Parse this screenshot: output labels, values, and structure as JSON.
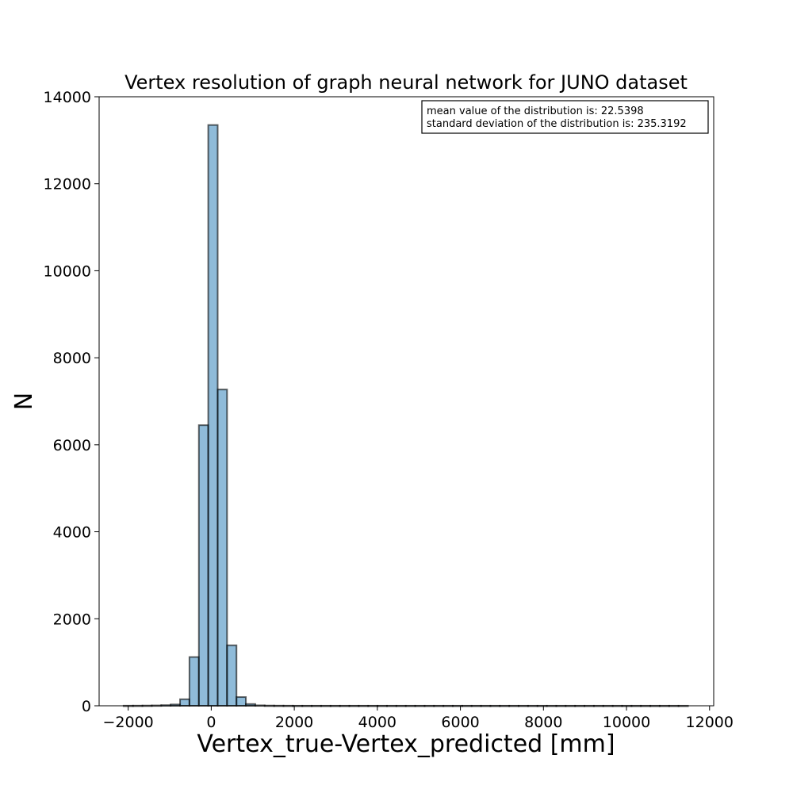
{
  "chart_data": {
    "type": "bar",
    "title": "Vertex resolution of graph neural network for JUNO dataset",
    "xlabel": "Vertex_true-Vertex_predicted [mm]",
    "ylabel": "N",
    "xlim": [
      -2700,
      12100
    ],
    "ylim": [
      0,
      14000
    ],
    "xticks": [
      -2000,
      0,
      2000,
      4000,
      6000,
      8000,
      10000,
      12000
    ],
    "yticks": [
      0,
      2000,
      4000,
      6000,
      8000,
      10000,
      12000,
      14000
    ],
    "xtick_labels": [
      "−2000",
      "0",
      "2000",
      "4000",
      "6000",
      "8000",
      "10000",
      "12000"
    ],
    "ytick_labels": [
      "0",
      "2000",
      "4000",
      "6000",
      "8000",
      "10000",
      "12000",
      "14000"
    ],
    "bin_edges": [
      -2110,
      -1884,
      -1657,
      -1431,
      -1204,
      -978,
      -751,
      -525,
      -298,
      -72,
      155,
      381,
      608,
      834,
      1061,
      1287,
      1514,
      1740,
      1967,
      2193,
      2420,
      2646,
      2873,
      3099,
      3326,
      3552,
      3779,
      4005,
      4232,
      4458,
      4685,
      4911,
      5138,
      5364,
      5591,
      5817,
      6044,
      6270,
      6497,
      6723,
      6950,
      7176,
      7403,
      7629,
      7856,
      8082,
      8309,
      8535,
      8762,
      8988,
      9215,
      9441,
      9668,
      9894,
      10121,
      10347,
      10574,
      10800,
      11027,
      11253,
      11480
    ],
    "values": [
      2,
      3,
      5,
      8,
      15,
      30,
      150,
      1120,
      6450,
      13350,
      7270,
      1390,
      200,
      40,
      10,
      5,
      3,
      2,
      1,
      1,
      1,
      1,
      1,
      1,
      1,
      1,
      1,
      1,
      1,
      1,
      1,
      1,
      1,
      1,
      1,
      1,
      1,
      1,
      1,
      1,
      1,
      1,
      1,
      1,
      1,
      1,
      1,
      1,
      1,
      1,
      1,
      1,
      1,
      1,
      1,
      1,
      1,
      1,
      1,
      1
    ],
    "bar_color": "#1f77b4",
    "bar_alpha": 0.5,
    "edge_color": "#000000",
    "grid": false,
    "legend_placement": "top-right",
    "annotation": {
      "line1": "mean value of the distribution is: 22.5398",
      "line2": "standard deviation of the distribution is: 235.3192"
    }
  }
}
